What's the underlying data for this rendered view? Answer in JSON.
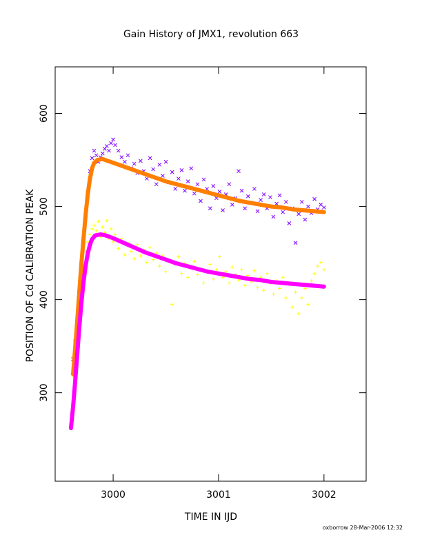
{
  "chart_data": {
    "type": "scatter",
    "title": "Gain History of JMX1, revolution 663",
    "xlabel": "TIME IN IJD",
    "ylabel": "POSITION OF Cd CALIBRATION PEAK",
    "xlim": [
      2999.45,
      3002.4
    ],
    "ylim": [
      205,
      650
    ],
    "xticks": [
      3000,
      3001,
      3002
    ],
    "xtick_labels": [
      "3000",
      "3001",
      "3002"
    ],
    "yticks": [
      300,
      400,
      500,
      600
    ],
    "ytick_labels": [
      "300",
      "400",
      "500",
      "600"
    ],
    "grid": false,
    "legend": "none",
    "series": [
      {
        "marker": "x",
        "color": "#7f00ff",
        "points": [
          [
            2999.62,
            336
          ],
          [
            2999.64,
            355
          ],
          [
            2999.66,
            378
          ],
          [
            2999.68,
            405
          ],
          [
            2999.7,
            432
          ],
          [
            2999.72,
            462
          ],
          [
            2999.74,
            492
          ],
          [
            2999.76,
            515
          ],
          [
            2999.78,
            538
          ],
          [
            2999.8,
            552
          ],
          [
            2999.82,
            560
          ],
          [
            2999.84,
            555
          ],
          [
            2999.86,
            548
          ],
          [
            2999.88,
            553
          ],
          [
            2999.9,
            557
          ],
          [
            2999.92,
            562
          ],
          [
            2999.94,
            565
          ],
          [
            2999.96,
            560
          ],
          [
            2999.98,
            568
          ],
          [
            3000.0,
            572
          ],
          [
            3000.02,
            566
          ],
          [
            3000.05,
            560
          ],
          [
            3000.08,
            553
          ],
          [
            3000.11,
            548
          ],
          [
            3000.14,
            555
          ],
          [
            3000.17,
            541
          ],
          [
            3000.2,
            546
          ],
          [
            3000.23,
            536
          ],
          [
            3000.26,
            549
          ],
          [
            3000.29,
            538
          ],
          [
            3000.32,
            530
          ],
          [
            3000.35,
            552
          ],
          [
            3000.38,
            540
          ],
          [
            3000.41,
            524
          ],
          [
            3000.44,
            545
          ],
          [
            3000.47,
            533
          ],
          [
            3000.5,
            548
          ],
          [
            3000.53,
            526
          ],
          [
            3000.56,
            537
          ],
          [
            3000.59,
            519
          ],
          [
            3000.62,
            530
          ],
          [
            3000.65,
            539
          ],
          [
            3000.68,
            517
          ],
          [
            3000.71,
            527
          ],
          [
            3000.74,
            541
          ],
          [
            3000.77,
            514
          ],
          [
            3000.8,
            524
          ],
          [
            3000.83,
            506
          ],
          [
            3000.86,
            529
          ],
          [
            3000.89,
            519
          ],
          [
            3000.92,
            498
          ],
          [
            3000.95,
            522
          ],
          [
            3000.98,
            509
          ],
          [
            3001.01,
            516
          ],
          [
            3001.04,
            496
          ],
          [
            3001.07,
            513
          ],
          [
            3001.1,
            524
          ],
          [
            3001.13,
            502
          ],
          [
            3001.16,
            509
          ],
          [
            3001.19,
            538
          ],
          [
            3001.22,
            517
          ],
          [
            3001.25,
            498
          ],
          [
            3001.28,
            511
          ],
          [
            3001.31,
            504
          ],
          [
            3001.34,
            519
          ],
          [
            3001.37,
            495
          ],
          [
            3001.4,
            507
          ],
          [
            3001.43,
            513
          ],
          [
            3001.46,
            498
          ],
          [
            3001.49,
            510
          ],
          [
            3001.52,
            489
          ],
          [
            3001.55,
            503
          ],
          [
            3001.58,
            512
          ],
          [
            3001.61,
            494
          ],
          [
            3001.64,
            505
          ],
          [
            3001.67,
            482
          ],
          [
            3001.7,
            498
          ],
          [
            3001.73,
            461
          ],
          [
            3001.76,
            492
          ],
          [
            3001.79,
            505
          ],
          [
            3001.82,
            486
          ],
          [
            3001.85,
            500
          ],
          [
            3001.88,
            493
          ],
          [
            3001.91,
            508
          ],
          [
            3001.94,
            497
          ],
          [
            3001.97,
            502
          ],
          [
            3002.0,
            499
          ]
        ]
      },
      {
        "marker": "+",
        "color": "#ffff00",
        "points": [
          [
            2999.62,
            318
          ],
          [
            2999.64,
            340
          ],
          [
            2999.66,
            365
          ],
          [
            2999.68,
            392
          ],
          [
            2999.7,
            415
          ],
          [
            2999.72,
            436
          ],
          [
            2999.74,
            452
          ],
          [
            2999.76,
            462
          ],
          [
            2999.78,
            470
          ],
          [
            2999.8,
            476
          ],
          [
            2999.82,
            480
          ],
          [
            2999.84,
            474
          ],
          [
            2999.86,
            484
          ],
          [
            2999.88,
            468
          ],
          [
            2999.9,
            478
          ],
          [
            2999.92,
            472
          ],
          [
            2999.94,
            485
          ],
          [
            2999.96,
            466
          ],
          [
            2999.98,
            476
          ],
          [
            3000.0,
            462
          ],
          [
            3000.02,
            470
          ],
          [
            3000.05,
            455
          ],
          [
            3000.08,
            466
          ],
          [
            3000.11,
            448
          ],
          [
            3000.14,
            461
          ],
          [
            3000.17,
            452
          ],
          [
            3000.2,
            444
          ],
          [
            3000.23,
            459
          ],
          [
            3000.26,
            447
          ],
          [
            3000.29,
            454
          ],
          [
            3000.32,
            440
          ],
          [
            3000.35,
            456
          ],
          [
            3000.38,
            443
          ],
          [
            3000.41,
            450
          ],
          [
            3000.44,
            436
          ],
          [
            3000.47,
            447
          ],
          [
            3000.5,
            430
          ],
          [
            3000.53,
            442
          ],
          [
            3000.56,
            395
          ],
          [
            3000.59,
            438
          ],
          [
            3000.62,
            446
          ],
          [
            3000.65,
            428
          ],
          [
            3000.68,
            439
          ],
          [
            3000.71,
            424
          ],
          [
            3000.74,
            436
          ],
          [
            3000.77,
            441
          ],
          [
            3000.8,
            427
          ],
          [
            3000.83,
            433
          ],
          [
            3000.86,
            418
          ],
          [
            3000.89,
            430
          ],
          [
            3000.92,
            438
          ],
          [
            3000.95,
            422
          ],
          [
            3000.98,
            432
          ],
          [
            3001.01,
            446
          ],
          [
            3001.04,
            424
          ],
          [
            3001.07,
            430
          ],
          [
            3001.1,
            418
          ],
          [
            3001.13,
            435
          ],
          [
            3001.16,
            427
          ],
          [
            3001.19,
            421
          ],
          [
            3001.22,
            432
          ],
          [
            3001.25,
            415
          ],
          [
            3001.28,
            426
          ],
          [
            3001.31,
            419
          ],
          [
            3001.34,
            431
          ],
          [
            3001.37,
            413
          ],
          [
            3001.4,
            424
          ],
          [
            3001.43,
            410
          ],
          [
            3001.46,
            428
          ],
          [
            3001.49,
            418
          ],
          [
            3001.52,
            406
          ],
          [
            3001.55,
            420
          ],
          [
            3001.58,
            412
          ],
          [
            3001.61,
            424
          ],
          [
            3001.64,
            402
          ],
          [
            3001.67,
            416
          ],
          [
            3001.7,
            392
          ],
          [
            3001.73,
            408
          ],
          [
            3001.76,
            385
          ],
          [
            3001.79,
            402
          ],
          [
            3001.82,
            412
          ],
          [
            3001.85,
            395
          ],
          [
            3001.88,
            420
          ],
          [
            3001.91,
            428
          ],
          [
            3001.94,
            436
          ],
          [
            3001.97,
            440
          ],
          [
            3002.0,
            432
          ]
        ]
      },
      {
        "marker": "+",
        "color": "#ff7f00",
        "line": true,
        "points": [
          [
            2999.62,
            320
          ],
          [
            2999.64,
            348
          ],
          [
            2999.66,
            378
          ],
          [
            2999.68,
            410
          ],
          [
            2999.7,
            440
          ],
          [
            2999.72,
            467
          ],
          [
            2999.74,
            492
          ],
          [
            2999.76,
            514
          ],
          [
            2999.78,
            530
          ],
          [
            2999.8,
            541
          ],
          [
            2999.82,
            547
          ],
          [
            2999.85,
            550
          ],
          [
            2999.9,
            551
          ],
          [
            2999.95,
            549
          ],
          [
            3000.0,
            547
          ],
          [
            3000.1,
            543
          ],
          [
            3000.2,
            539
          ],
          [
            3000.3,
            535
          ],
          [
            3000.4,
            531
          ],
          [
            3000.5,
            527
          ],
          [
            3000.6,
            524
          ],
          [
            3000.7,
            521
          ],
          [
            3000.8,
            518
          ],
          [
            3000.9,
            515
          ],
          [
            3001.0,
            512
          ],
          [
            3001.1,
            509
          ],
          [
            3001.2,
            506
          ],
          [
            3001.3,
            504
          ],
          [
            3001.4,
            502
          ],
          [
            3001.5,
            500
          ],
          [
            3001.6,
            499
          ],
          [
            3001.7,
            497
          ],
          [
            3001.8,
            496
          ],
          [
            3001.9,
            495
          ],
          [
            3002.0,
            494
          ]
        ]
      },
      {
        "marker": "+",
        "color": "#ff00ff",
        "line": true,
        "points": [
          [
            2999.6,
            262
          ],
          [
            2999.62,
            285
          ],
          [
            2999.64,
            312
          ],
          [
            2999.66,
            342
          ],
          [
            2999.68,
            372
          ],
          [
            2999.7,
            398
          ],
          [
            2999.72,
            420
          ],
          [
            2999.74,
            437
          ],
          [
            2999.76,
            450
          ],
          [
            2999.78,
            459
          ],
          [
            2999.8,
            465
          ],
          [
            2999.83,
            469
          ],
          [
            2999.88,
            470
          ],
          [
            2999.93,
            469
          ],
          [
            3000.0,
            466
          ],
          [
            3000.1,
            461
          ],
          [
            3000.2,
            456
          ],
          [
            3000.3,
            451
          ],
          [
            3000.4,
            447
          ],
          [
            3000.5,
            443
          ],
          [
            3000.6,
            439
          ],
          [
            3000.7,
            436
          ],
          [
            3000.8,
            433
          ],
          [
            3000.9,
            430
          ],
          [
            3001.0,
            428
          ],
          [
            3001.1,
            426
          ],
          [
            3001.2,
            424
          ],
          [
            3001.3,
            422
          ],
          [
            3001.4,
            421
          ],
          [
            3001.5,
            419
          ],
          [
            3001.6,
            418
          ],
          [
            3001.7,
            417
          ],
          [
            3001.8,
            416
          ],
          [
            3001.9,
            415
          ],
          [
            3002.0,
            414
          ]
        ]
      }
    ]
  },
  "footer": {
    "credit": "oxborrow 28-Mar-2006 12:32"
  }
}
